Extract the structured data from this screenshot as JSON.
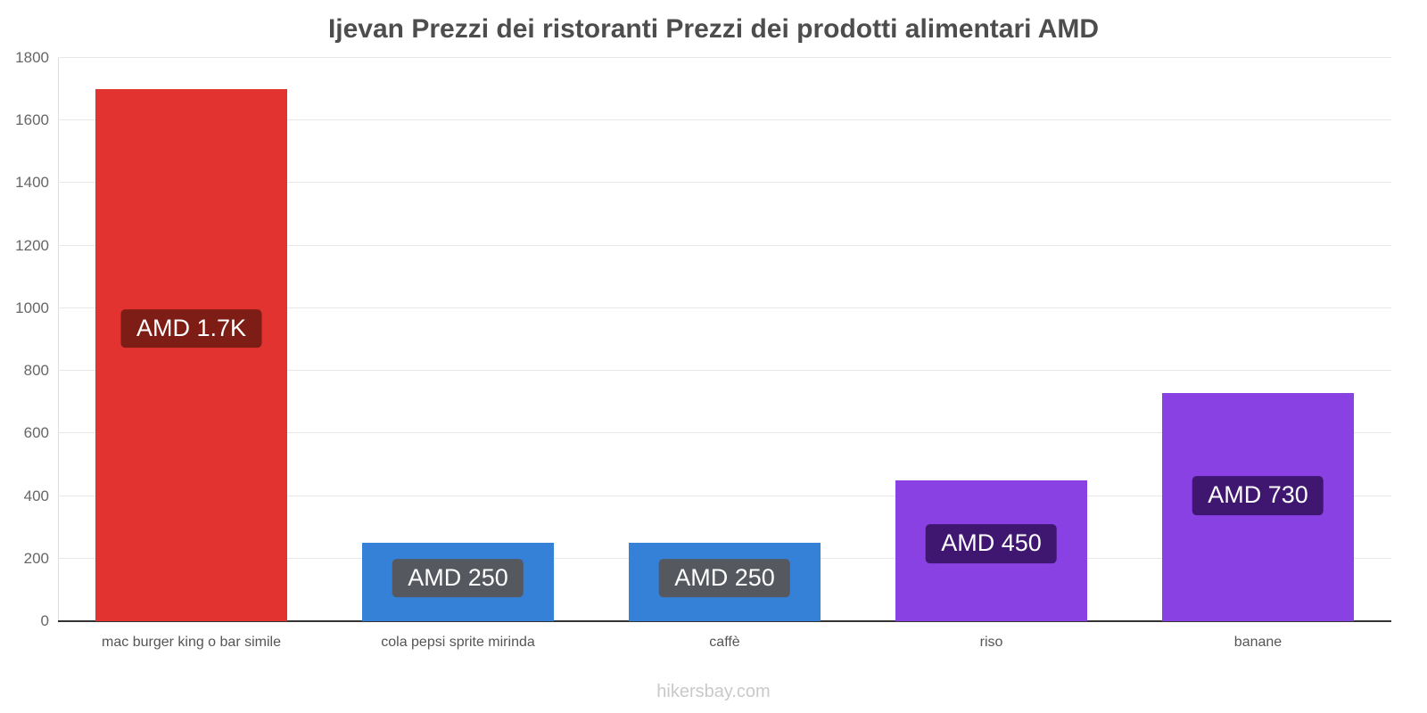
{
  "title": "Ijevan Prezzi dei ristoranti Prezzi dei prodotti alimentari AMD",
  "footer": "hikersbay.com",
  "colors": {
    "red_bar": "#e23330",
    "blue_bar": "#3581d8",
    "purple_bar": "#8a41e4",
    "red_label_bg": "#7d1d15",
    "gray_label_bg": "#55585f",
    "purple_label_bg": "#3f1670",
    "grid": "#e8e8e8",
    "axis_text": "#666666",
    "baseline": "#333333"
  },
  "chart_data": {
    "type": "bar",
    "title": "Ijevan Prezzi dei ristoranti Prezzi dei prodotti alimentari AMD",
    "categories": [
      "mac burger king o bar simile",
      "cola pepsi sprite mirinda",
      "caffè",
      "riso",
      "banane"
    ],
    "values": [
      1700,
      250,
      250,
      450,
      730
    ],
    "value_labels": [
      "AMD 1.7K",
      "AMD 250",
      "AMD 250",
      "AMD 450",
      "AMD 730"
    ],
    "bar_colors": [
      "#e23330",
      "#3581d8",
      "#3581d8",
      "#8a41e4",
      "#8a41e4"
    ],
    "label_bg_colors": [
      "#7d1d15",
      "#55585f",
      "#55585f",
      "#3f1670",
      "#3f1670"
    ],
    "xlabel": "",
    "ylabel": "",
    "ylim": [
      0,
      1800
    ],
    "ytick_step": 200,
    "grid": true,
    "legend": false,
    "currency": "AMD"
  }
}
